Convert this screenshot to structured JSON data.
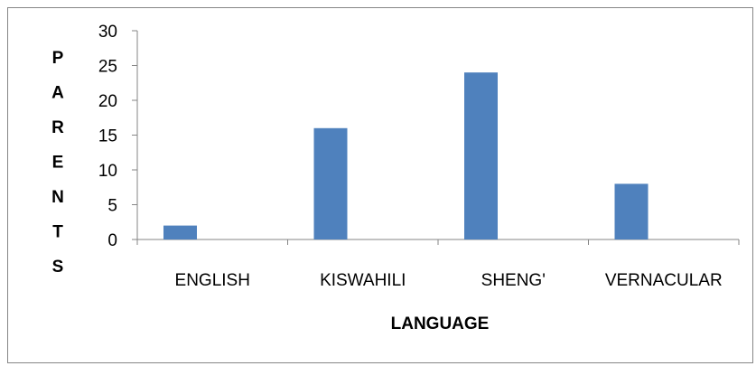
{
  "chart_data": {
    "type": "bar",
    "categories": [
      "ENGLISH",
      "KISWAHILI",
      "SHENG'",
      "VERNACULAR"
    ],
    "values": [
      2,
      16,
      24,
      8
    ],
    "title": "",
    "xlabel": "LANGUAGE",
    "ylabel": "PARENTS",
    "ylim": [
      0,
      30
    ],
    "yticks": [
      0,
      5,
      10,
      15,
      20,
      25,
      30
    ],
    "grid": false,
    "legend": "none",
    "bar_color": "#4f81bd"
  }
}
